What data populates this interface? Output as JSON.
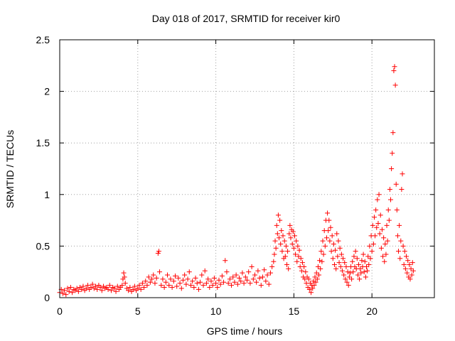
{
  "chart_data": {
    "type": "scatter",
    "title": "Day 018 of 2017, SRMTID for receiver kir0",
    "xlabel": "GPS time / hours",
    "ylabel": "SRMTID / TECUs",
    "xlim": [
      0,
      24
    ],
    "ylim": [
      0,
      2.5
    ],
    "xticks": [
      0,
      5,
      10,
      15,
      20
    ],
    "xtick_labels": [
      "0",
      "5",
      "10",
      "15",
      "20"
    ],
    "yticks": [
      0,
      0.5,
      1,
      1.5,
      2,
      2.5
    ],
    "ytick_labels": [
      "0",
      "0.5",
      "1",
      "1.5",
      "2",
      "2.5"
    ],
    "grid": true,
    "marker": "+",
    "series": [
      {
        "name": "SRMTID",
        "color": "#ff0000",
        "points": [
          [
            0.0,
            0.05
          ],
          [
            0.1,
            0.08
          ],
          [
            0.2,
            0.04
          ],
          [
            0.3,
            0.07
          ],
          [
            0.4,
            0.03
          ],
          [
            0.5,
            0.09
          ],
          [
            0.6,
            0.06
          ],
          [
            0.7,
            0.1
          ],
          [
            0.8,
            0.05
          ],
          [
            0.9,
            0.08
          ],
          [
            1.0,
            0.07
          ],
          [
            1.1,
            0.09
          ],
          [
            1.2,
            0.06
          ],
          [
            1.3,
            0.1
          ],
          [
            1.4,
            0.08
          ],
          [
            1.5,
            0.11
          ],
          [
            1.6,
            0.07
          ],
          [
            1.7,
            0.09
          ],
          [
            1.8,
            0.12
          ],
          [
            1.9,
            0.08
          ],
          [
            2.0,
            0.1
          ],
          [
            2.1,
            0.13
          ],
          [
            2.2,
            0.09
          ],
          [
            2.3,
            0.11
          ],
          [
            2.4,
            0.08
          ],
          [
            2.5,
            0.12
          ],
          [
            2.6,
            0.1
          ],
          [
            2.7,
            0.07
          ],
          [
            2.8,
            0.11
          ],
          [
            2.9,
            0.09
          ],
          [
            3.0,
            0.1
          ],
          [
            3.1,
            0.08
          ],
          [
            3.2,
            0.12
          ],
          [
            3.3,
            0.07
          ],
          [
            3.4,
            0.1
          ],
          [
            3.5,
            0.09
          ],
          [
            3.6,
            0.06
          ],
          [
            3.7,
            0.11
          ],
          [
            3.8,
            0.08
          ],
          [
            3.9,
            0.1
          ],
          [
            4.0,
            0.12
          ],
          [
            4.05,
            0.18
          ],
          [
            4.1,
            0.24
          ],
          [
            4.15,
            0.2
          ],
          [
            4.2,
            0.14
          ],
          [
            4.3,
            0.09
          ],
          [
            4.4,
            0.07
          ],
          [
            4.5,
            0.1
          ],
          [
            4.6,
            0.06
          ],
          [
            4.7,
            0.08
          ],
          [
            4.8,
            0.11
          ],
          [
            4.9,
            0.07
          ],
          [
            5.0,
            0.09
          ],
          [
            5.1,
            0.12
          ],
          [
            5.2,
            0.08
          ],
          [
            5.3,
            0.14
          ],
          [
            5.4,
            0.1
          ],
          [
            5.5,
            0.16
          ],
          [
            5.6,
            0.12
          ],
          [
            5.7,
            0.2
          ],
          [
            5.8,
            0.15
          ],
          [
            5.9,
            0.18
          ],
          [
            6.0,
            0.22
          ],
          [
            6.1,
            0.14
          ],
          [
            6.2,
            0.19
          ],
          [
            6.3,
            0.43
          ],
          [
            6.35,
            0.45
          ],
          [
            6.4,
            0.25
          ],
          [
            6.5,
            0.12
          ],
          [
            6.6,
            0.18
          ],
          [
            6.7,
            0.1
          ],
          [
            6.8,
            0.15
          ],
          [
            6.9,
            0.22
          ],
          [
            7.0,
            0.12
          ],
          [
            7.1,
            0.18
          ],
          [
            7.2,
            0.1
          ],
          [
            7.3,
            0.16
          ],
          [
            7.4,
            0.21
          ],
          [
            7.5,
            0.11
          ],
          [
            7.6,
            0.19
          ],
          [
            7.7,
            0.14
          ],
          [
            7.8,
            0.09
          ],
          [
            7.9,
            0.17
          ],
          [
            8.0,
            0.22
          ],
          [
            8.1,
            0.13
          ],
          [
            8.2,
            0.18
          ],
          [
            8.3,
            0.25
          ],
          [
            8.4,
            0.12
          ],
          [
            8.5,
            0.16
          ],
          [
            8.6,
            0.1
          ],
          [
            8.7,
            0.19
          ],
          [
            8.8,
            0.14
          ],
          [
            8.9,
            0.08
          ],
          [
            9.0,
            0.15
          ],
          [
            9.1,
            0.22
          ],
          [
            9.2,
            0.12
          ],
          [
            9.3,
            0.26
          ],
          [
            9.4,
            0.14
          ],
          [
            9.5,
            0.18
          ],
          [
            9.6,
            0.1
          ],
          [
            9.7,
            0.16
          ],
          [
            9.8,
            0.12
          ],
          [
            9.9,
            0.19
          ],
          [
            10.0,
            0.14
          ],
          [
            10.1,
            0.1
          ],
          [
            10.2,
            0.17
          ],
          [
            10.3,
            0.13
          ],
          [
            10.4,
            0.21
          ],
          [
            10.5,
            0.15
          ],
          [
            10.6,
            0.36
          ],
          [
            10.7,
            0.25
          ],
          [
            10.8,
            0.14
          ],
          [
            10.9,
            0.18
          ],
          [
            11.0,
            0.12
          ],
          [
            11.1,
            0.2
          ],
          [
            11.2,
            0.15
          ],
          [
            11.3,
            0.22
          ],
          [
            11.4,
            0.13
          ],
          [
            11.5,
            0.19
          ],
          [
            11.6,
            0.16
          ],
          [
            11.7,
            0.24
          ],
          [
            11.8,
            0.14
          ],
          [
            11.9,
            0.2
          ],
          [
            12.0,
            0.17
          ],
          [
            12.1,
            0.25
          ],
          [
            12.2,
            0.14
          ],
          [
            12.3,
            0.3
          ],
          [
            12.4,
            0.18
          ],
          [
            12.5,
            0.22
          ],
          [
            12.6,
            0.15
          ],
          [
            12.7,
            0.26
          ],
          [
            12.8,
            0.19
          ],
          [
            12.9,
            0.12
          ],
          [
            13.0,
            0.2
          ],
          [
            13.1,
            0.27
          ],
          [
            13.2,
            0.16
          ],
          [
            13.3,
            0.22
          ],
          [
            13.4,
            0.13
          ],
          [
            13.5,
            0.24
          ],
          [
            13.6,
            0.3
          ],
          [
            13.7,
            0.35
          ],
          [
            13.75,
            0.42
          ],
          [
            13.8,
            0.55
          ],
          [
            13.85,
            0.48
          ],
          [
            13.9,
            0.7
          ],
          [
            13.95,
            0.62
          ],
          [
            14.0,
            0.8
          ],
          [
            14.05,
            0.58
          ],
          [
            14.1,
            0.75
          ],
          [
            14.15,
            0.52
          ],
          [
            14.2,
            0.65
          ],
          [
            14.25,
            0.45
          ],
          [
            14.3,
            0.6
          ],
          [
            14.35,
            0.38
          ],
          [
            14.4,
            0.55
          ],
          [
            14.45,
            0.4
          ],
          [
            14.5,
            0.5
          ],
          [
            14.55,
            0.32
          ],
          [
            14.6,
            0.45
          ],
          [
            14.65,
            0.28
          ],
          [
            14.7,
            0.62
          ],
          [
            14.75,
            0.7
          ],
          [
            14.8,
            0.58
          ],
          [
            14.85,
            0.66
          ],
          [
            14.9,
            0.52
          ],
          [
            14.95,
            0.64
          ],
          [
            15.0,
            0.48
          ],
          [
            15.05,
            0.6
          ],
          [
            15.1,
            0.42
          ],
          [
            15.15,
            0.55
          ],
          [
            15.2,
            0.35
          ],
          [
            15.25,
            0.5
          ],
          [
            15.3,
            0.4
          ],
          [
            15.35,
            0.46
          ],
          [
            15.4,
            0.3
          ],
          [
            15.45,
            0.38
          ],
          [
            15.5,
            0.26
          ],
          [
            15.55,
            0.34
          ],
          [
            15.6,
            0.2
          ],
          [
            15.65,
            0.3
          ],
          [
            15.7,
            0.18
          ],
          [
            15.75,
            0.25
          ],
          [
            15.8,
            0.14
          ],
          [
            15.85,
            0.2
          ],
          [
            15.9,
            0.1
          ],
          [
            15.95,
            0.18
          ],
          [
            16.0,
            0.08
          ],
          [
            16.05,
            0.14
          ],
          [
            16.1,
            0.05
          ],
          [
            16.15,
            0.12
          ],
          [
            16.2,
            0.09
          ],
          [
            16.25,
            0.16
          ],
          [
            16.3,
            0.12
          ],
          [
            16.35,
            0.2
          ],
          [
            16.4,
            0.15
          ],
          [
            16.45,
            0.24
          ],
          [
            16.5,
            0.18
          ],
          [
            16.55,
            0.3
          ],
          [
            16.6,
            0.22
          ],
          [
            16.65,
            0.36
          ],
          [
            16.7,
            0.28
          ],
          [
            16.75,
            0.45
          ],
          [
            16.8,
            0.35
          ],
          [
            16.85,
            0.55
          ],
          [
            16.9,
            0.42
          ],
          [
            16.95,
            0.65
          ],
          [
            17.0,
            0.5
          ],
          [
            17.05,
            0.75
          ],
          [
            17.1,
            0.58
          ],
          [
            17.15,
            0.82
          ],
          [
            17.2,
            0.65
          ],
          [
            17.25,
            0.75
          ],
          [
            17.3,
            0.55
          ],
          [
            17.35,
            0.68
          ],
          [
            17.4,
            0.45
          ],
          [
            17.45,
            0.6
          ],
          [
            17.5,
            0.38
          ],
          [
            17.55,
            0.52
          ],
          [
            17.6,
            0.32
          ],
          [
            17.65,
            0.46
          ],
          [
            17.7,
            0.28
          ],
          [
            17.75,
            0.62
          ],
          [
            17.8,
            0.4
          ],
          [
            17.85,
            0.55
          ],
          [
            17.9,
            0.34
          ],
          [
            17.95,
            0.48
          ],
          [
            18.0,
            0.3
          ],
          [
            18.05,
            0.42
          ],
          [
            18.1,
            0.26
          ],
          [
            18.15,
            0.38
          ],
          [
            18.2,
            0.22
          ],
          [
            18.25,
            0.34
          ],
          [
            18.3,
            0.18
          ],
          [
            18.35,
            0.3
          ],
          [
            18.4,
            0.15
          ],
          [
            18.45,
            0.25
          ],
          [
            18.5,
            0.12
          ],
          [
            18.55,
            0.2
          ],
          [
            18.6,
            0.24
          ],
          [
            18.65,
            0.3
          ],
          [
            18.7,
            0.18
          ],
          [
            18.75,
            0.35
          ],
          [
            18.8,
            0.25
          ],
          [
            18.85,
            0.4
          ],
          [
            18.9,
            0.3
          ],
          [
            18.95,
            0.45
          ],
          [
            19.0,
            0.28
          ],
          [
            19.05,
            0.38
          ],
          [
            19.1,
            0.22
          ],
          [
            19.15,
            0.32
          ],
          [
            19.2,
            0.18
          ],
          [
            19.25,
            0.28
          ],
          [
            19.3,
            0.24
          ],
          [
            19.35,
            0.36
          ],
          [
            19.4,
            0.3
          ],
          [
            19.45,
            0.42
          ],
          [
            19.5,
            0.25
          ],
          [
            19.55,
            0.35
          ],
          [
            19.6,
            0.2
          ],
          [
            19.65,
            0.3
          ],
          [
            19.7,
            0.26
          ],
          [
            19.75,
            0.4
          ],
          [
            19.8,
            0.32
          ],
          [
            19.85,
            0.5
          ],
          [
            19.9,
            0.38
          ],
          [
            19.95,
            0.6
          ],
          [
            20.0,
            0.45
          ],
          [
            20.05,
            0.7
          ],
          [
            20.1,
            0.52
          ],
          [
            20.15,
            0.78
          ],
          [
            20.2,
            0.6
          ],
          [
            20.25,
            0.85
          ],
          [
            20.3,
            0.68
          ],
          [
            20.35,
            0.95
          ],
          [
            20.4,
            0.72
          ],
          [
            20.45,
            1.0
          ],
          [
            20.5,
            0.62
          ],
          [
            20.55,
            0.8
          ],
          [
            20.6,
            0.48
          ],
          [
            20.65,
            0.66
          ],
          [
            20.7,
            0.4
          ],
          [
            20.75,
            0.58
          ],
          [
            20.8,
            0.35
          ],
          [
            20.85,
            0.52
          ],
          [
            20.9,
            0.42
          ],
          [
            20.95,
            0.7
          ],
          [
            21.0,
            0.55
          ],
          [
            21.05,
            0.85
          ],
          [
            21.1,
            0.75
          ],
          [
            21.15,
            1.05
          ],
          [
            21.2,
            0.95
          ],
          [
            21.25,
            1.25
          ],
          [
            21.3,
            1.4
          ],
          [
            21.35,
            1.6
          ],
          [
            21.4,
            2.2
          ],
          [
            21.45,
            2.24
          ],
          [
            21.5,
            2.06
          ],
          [
            21.55,
            1.1
          ],
          [
            21.6,
            0.85
          ],
          [
            21.65,
            0.6
          ],
          [
            21.7,
            0.45
          ],
          [
            21.75,
            0.7
          ],
          [
            21.8,
            0.38
          ],
          [
            21.85,
            0.55
          ],
          [
            21.9,
            1.05
          ],
          [
            21.95,
            1.2
          ],
          [
            22.0,
            0.5
          ],
          [
            22.05,
            0.32
          ],
          [
            22.1,
            0.45
          ],
          [
            22.15,
            0.28
          ],
          [
            22.2,
            0.4
          ],
          [
            22.25,
            0.24
          ],
          [
            22.3,
            0.36
          ],
          [
            22.35,
            0.2
          ],
          [
            22.4,
            0.32
          ],
          [
            22.45,
            0.18
          ],
          [
            22.5,
            0.28
          ],
          [
            22.55,
            0.22
          ],
          [
            22.6,
            0.34
          ],
          [
            22.65,
            0.26
          ]
        ]
      }
    ]
  }
}
